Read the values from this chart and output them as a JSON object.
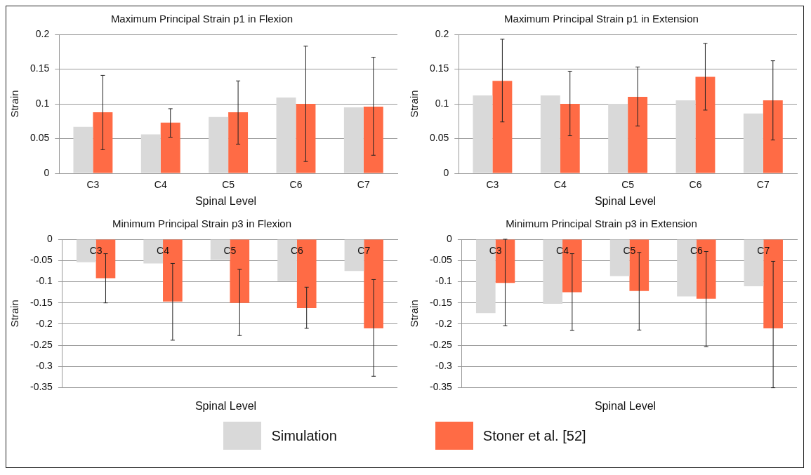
{
  "chart_data": [
    {
      "type": "bar",
      "title": "Maximum Principal Strain p1 in Flexion",
      "xlabel": "Spinal Level",
      "ylabel": "Strain",
      "categories": [
        "C3",
        "C4",
        "C5",
        "C6",
        "C7"
      ],
      "ylim": [
        0,
        0.2
      ],
      "yticks": [
        0,
        0.05,
        0.1,
        0.15,
        0.2
      ],
      "grid": "y",
      "series": [
        {
          "color": "#d9d9d9",
          "values": [
            0.067,
            0.056,
            0.081,
            0.109,
            0.095
          ]
        },
        {
          "color": "#ff6b45",
          "values": [
            0.088,
            0.073,
            0.088,
            0.1,
            0.096
          ],
          "errors": [
            [
              0.034,
              0.141
            ],
            [
              0.052,
              0.093
            ],
            [
              0.042,
              0.133
            ],
            [
              0.017,
              0.183
            ],
            [
              0.026,
              0.167
            ]
          ]
        }
      ]
    },
    {
      "type": "bar",
      "title": "Maximum Principal Strain p1 in Extension",
      "xlabel": "Spinal Level",
      "ylabel": "Strain",
      "categories": [
        "C3",
        "C4",
        "C5",
        "C6",
        "C7"
      ],
      "ylim": [
        0,
        0.2
      ],
      "yticks": [
        0,
        0.05,
        0.1,
        0.15,
        0.2
      ],
      "grid": "y",
      "series": [
        {
          "color": "#d9d9d9",
          "values": [
            0.112,
            0.112,
            0.1,
            0.105,
            0.086
          ]
        },
        {
          "color": "#ff6b45",
          "values": [
            0.133,
            0.1,
            0.11,
            0.139,
            0.105
          ],
          "errors": [
            [
              0.074,
              0.193
            ],
            [
              0.054,
              0.147
            ],
            [
              0.068,
              0.153
            ],
            [
              0.091,
              0.187
            ],
            [
              0.048,
              0.162
            ]
          ]
        }
      ]
    },
    {
      "type": "bar",
      "title": "Minimum Principal Strain p3 in Flexion",
      "xlabel": "Spinal Level",
      "ylabel": "Strain",
      "categories": [
        "C3",
        "C4",
        "C5",
        "C6",
        "C7"
      ],
      "ylim": [
        -0.35,
        0
      ],
      "yticks": [
        -0.35,
        -0.3,
        -0.25,
        -0.2,
        -0.15,
        -0.1,
        -0.05,
        0
      ],
      "grid": "y",
      "series": [
        {
          "color": "#d9d9d9",
          "values": [
            -0.054,
            -0.057,
            -0.049,
            -0.099,
            -0.075
          ]
        },
        {
          "color": "#ff6b45",
          "values": [
            -0.092,
            -0.147,
            -0.15,
            -0.162,
            -0.21
          ],
          "errors": [
            [
              -0.15,
              -0.034
            ],
            [
              -0.238,
              -0.057
            ],
            [
              -0.227,
              -0.071
            ],
            [
              -0.21,
              -0.113
            ],
            [
              -0.323,
              -0.095
            ]
          ]
        }
      ]
    },
    {
      "type": "bar",
      "title": "Minimum Principal Strain p3 in Extension",
      "xlabel": "Spinal Level",
      "ylabel": "Strain",
      "categories": [
        "C3",
        "C4",
        "C5",
        "C6",
        "C7"
      ],
      "ylim": [
        -0.35,
        0
      ],
      "yticks": [
        -0.35,
        -0.3,
        -0.25,
        -0.2,
        -0.15,
        -0.1,
        -0.05,
        0
      ],
      "grid": "y",
      "legend": "bottom",
      "series": [
        {
          "name": "Simulation",
          "color": "#d9d9d9",
          "values": [
            -0.174,
            -0.152,
            -0.087,
            -0.135,
            -0.111
          ]
        },
        {
          "name": "Stoner et al. [52]",
          "color": "#ff6b45",
          "values": [
            -0.103,
            -0.125,
            -0.122,
            -0.14,
            -0.21
          ],
          "errors": [
            [
              -0.204,
              0
            ],
            [
              -0.215,
              -0.034
            ],
            [
              -0.214,
              -0.031
            ],
            [
              -0.253,
              -0.029
            ],
            [
              -0.35,
              -0.052
            ]
          ]
        }
      ]
    }
  ]
}
